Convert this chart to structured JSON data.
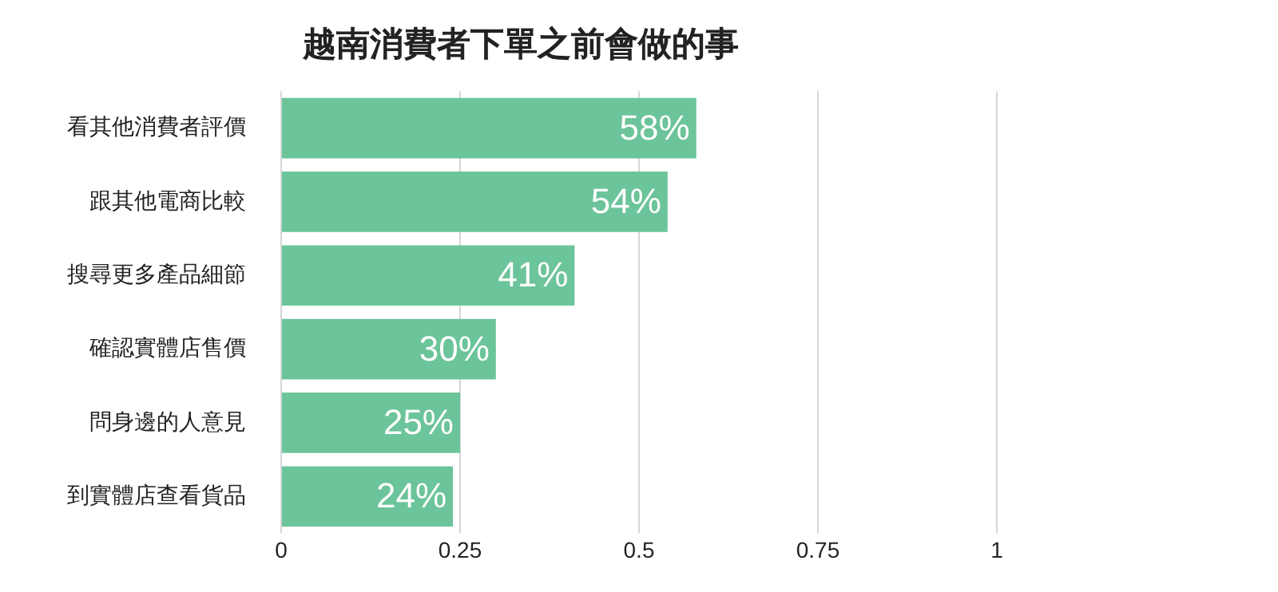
{
  "chart_data": {
    "type": "bar",
    "orientation": "horizontal",
    "title": "越南消費者下單之前會做的事",
    "categories": [
      "看其他消費者評價",
      "跟其他電商比較",
      "搜尋更多產品細節",
      "確認實體店售價",
      "問身邊的人意見",
      "到實體店查看貨品"
    ],
    "values": [
      0.58,
      0.54,
      0.41,
      0.3,
      0.25,
      0.24
    ],
    "value_labels": [
      "58%",
      "54%",
      "41%",
      "30%",
      "25%",
      "24%"
    ],
    "color": "#6cc49a",
    "xlim": [
      0,
      1
    ],
    "xticks": [
      0,
      0.25,
      0.5,
      0.75,
      1
    ],
    "grid": "x",
    "legend": false
  }
}
